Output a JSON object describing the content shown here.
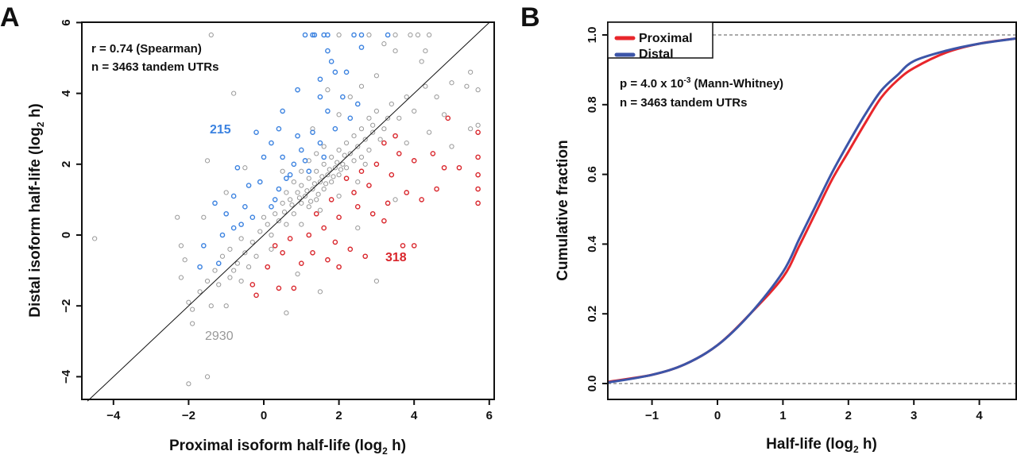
{
  "chart_data": [
    {
      "panel_label": "A",
      "type": "scatter",
      "xlabel": "Proximal isoform half-life (log2 h)",
      "xlabel_main": "Proximal isoform half-life (log",
      "xlabel_sub": "2",
      "xlabel_end": " h)",
      "ylabel_main": "Distal isoform half-life (log",
      "ylabel_sub": "2",
      "ylabel_end": " h)",
      "xlim": [
        -4.84,
        6.1
      ],
      "ylim": [
        -4.64,
        6
      ],
      "xticks": [
        "-4",
        "-2",
        "0",
        "2",
        "4",
        "6"
      ],
      "yticks": [
        "-4",
        "-2",
        "0",
        "2",
        "4",
        "6"
      ],
      "reference_line": "y = x",
      "annotations": [
        "r = 0.74 (Spearman)",
        "n = 3463 tandem UTRs"
      ],
      "group_labels": {
        "up": "215",
        "down": "318",
        "unchanged": "2930"
      },
      "colors": {
        "up": "#3b82e0",
        "down": "#d9252b",
        "unchanged": "#777777"
      },
      "series": [
        {
          "group": "up",
          "points": [
            [
              1.1,
              5.65
            ],
            [
              1.3,
              5.65
            ],
            [
              1.35,
              5.65
            ],
            [
              1.6,
              5.65
            ],
            [
              1.7,
              5.65
            ],
            [
              2.4,
              5.65
            ],
            [
              2.6,
              5.65
            ],
            [
              3.3,
              5.65
            ],
            [
              1.7,
              5.2
            ],
            [
              2.6,
              5.3
            ],
            [
              1.8,
              4.9
            ],
            [
              1.9,
              4.6
            ],
            [
              2.2,
              4.6
            ],
            [
              1.5,
              4.4
            ],
            [
              0.9,
              4.1
            ],
            [
              1.5,
              3.9
            ],
            [
              2.1,
              3.9
            ],
            [
              1.7,
              3.5
            ],
            [
              2.5,
              3.7
            ],
            [
              0.5,
              3.5
            ],
            [
              0.4,
              3.0
            ],
            [
              -0.2,
              2.9
            ],
            [
              0.9,
              2.8
            ],
            [
              1.3,
              2.9
            ],
            [
              0.2,
              2.6
            ],
            [
              0.0,
              2.2
            ],
            [
              0.5,
              2.2
            ],
            [
              -0.7,
              1.9
            ],
            [
              0.7,
              1.7
            ],
            [
              1.2,
              1.8
            ],
            [
              -0.4,
              1.4
            ],
            [
              -0.1,
              1.5
            ],
            [
              0.4,
              1.3
            ],
            [
              -0.8,
              1.1
            ],
            [
              -1.3,
              0.9
            ],
            [
              -0.5,
              0.8
            ],
            [
              -1.0,
              0.6
            ],
            [
              -0.3,
              0.5
            ],
            [
              0.2,
              0.8
            ],
            [
              -0.8,
              0.2
            ],
            [
              -1.1,
              0.0
            ],
            [
              -1.6,
              -0.3
            ],
            [
              -1.2,
              -0.8
            ],
            [
              -1.7,
              -0.9
            ],
            [
              1.0,
              2.4
            ],
            [
              0.8,
              2.0
            ],
            [
              1.5,
              2.6
            ],
            [
              2.3,
              3.3
            ],
            [
              1.9,
              3.0
            ],
            [
              1.6,
              2.2
            ],
            [
              0.6,
              1.6
            ],
            [
              1.1,
              2.1
            ],
            [
              0.3,
              1.0
            ],
            [
              -0.6,
              0.3
            ]
          ]
        },
        {
          "group": "down",
          "points": [
            [
              3.2,
              2.6
            ],
            [
              3.6,
              2.3
            ],
            [
              4.0,
              2.1
            ],
            [
              4.5,
              2.3
            ],
            [
              4.9,
              3.3
            ],
            [
              5.7,
              2.9
            ],
            [
              5.7,
              2.2
            ],
            [
              5.7,
              1.7
            ],
            [
              5.7,
              1.3
            ],
            [
              5.7,
              0.9
            ],
            [
              5.2,
              1.9
            ],
            [
              4.8,
              1.9
            ],
            [
              4.6,
              1.3
            ],
            [
              4.2,
              1.0
            ],
            [
              3.8,
              1.2
            ],
            [
              3.3,
              0.9
            ],
            [
              3.2,
              0.4
            ],
            [
              3.7,
              -0.3
            ],
            [
              4.0,
              -0.3
            ],
            [
              2.7,
              -0.6
            ],
            [
              2.3,
              -0.4
            ],
            [
              2.0,
              -0.9
            ],
            [
              1.7,
              -0.7
            ],
            [
              1.3,
              -0.5
            ],
            [
              1.0,
              -0.8
            ],
            [
              0.5,
              -0.5
            ],
            [
              0.1,
              -0.9
            ],
            [
              -0.3,
              -1.4
            ],
            [
              -0.2,
              -1.7
            ],
            [
              0.4,
              -1.5
            ],
            [
              0.8,
              -1.5
            ],
            [
              1.2,
              0.0
            ],
            [
              1.6,
              0.2
            ],
            [
              2.0,
              0.5
            ],
            [
              2.5,
              0.8
            ],
            [
              2.8,
              1.4
            ],
            [
              2.2,
              1.6
            ],
            [
              2.6,
              1.8
            ],
            [
              3.0,
              2.0
            ],
            [
              3.4,
              1.7
            ],
            [
              1.8,
              1.0
            ],
            [
              1.4,
              0.6
            ],
            [
              0.7,
              -0.1
            ],
            [
              0.3,
              -0.3
            ],
            [
              2.4,
              1.2
            ],
            [
              2.9,
              0.6
            ],
            [
              1.9,
              -0.2
            ],
            [
              3.5,
              2.8
            ]
          ]
        },
        {
          "group": "unchanged",
          "points": [
            [
              -4.5,
              -0.1
            ],
            [
              -2.3,
              0.5
            ],
            [
              -2.2,
              -0.3
            ],
            [
              -2.1,
              -0.7
            ],
            [
              -2.2,
              -1.2
            ],
            [
              -2.0,
              -1.9
            ],
            [
              -1.9,
              -2.5
            ],
            [
              -2.0,
              -4.2
            ],
            [
              -1.5,
              -4.0
            ],
            [
              -1.9,
              -2.1
            ],
            [
              -1.7,
              -1.6
            ],
            [
              -1.5,
              -1.3
            ],
            [
              -1.4,
              -2.0
            ],
            [
              -1.3,
              -1.0
            ],
            [
              -1.0,
              -2.0
            ],
            [
              -0.9,
              -1.2
            ],
            [
              -0.7,
              -0.8
            ],
            [
              -0.5,
              -0.5
            ],
            [
              -0.3,
              -0.2
            ],
            [
              -0.1,
              0.1
            ],
            [
              0.1,
              0.3
            ],
            [
              0.3,
              0.6
            ],
            [
              0.5,
              0.9
            ],
            [
              0.7,
              1.0
            ],
            [
              0.9,
              1.2
            ],
            [
              1.0,
              1.4
            ],
            [
              1.1,
              1.1
            ],
            [
              1.2,
              1.6
            ],
            [
              1.3,
              1.3
            ],
            [
              1.4,
              1.8
            ],
            [
              1.5,
              1.5
            ],
            [
              1.6,
              2.0
            ],
            [
              1.7,
              1.7
            ],
            [
              1.8,
              2.2
            ],
            [
              1.9,
              1.9
            ],
            [
              2.0,
              2.4
            ],
            [
              2.1,
              2.0
            ],
            [
              2.2,
              2.6
            ],
            [
              2.3,
              2.3
            ],
            [
              2.4,
              2.8
            ],
            [
              2.5,
              2.5
            ],
            [
              2.6,
              3.0
            ],
            [
              2.7,
              2.7
            ],
            [
              2.8,
              3.3
            ],
            [
              2.9,
              2.9
            ],
            [
              3.0,
              3.5
            ],
            [
              3.2,
              3.0
            ],
            [
              3.4,
              3.7
            ],
            [
              3.6,
              3.3
            ],
            [
              3.8,
              3.9
            ],
            [
              4.0,
              3.5
            ],
            [
              4.3,
              4.2
            ],
            [
              4.6,
              3.9
            ],
            [
              5.0,
              4.3
            ],
            [
              5.4,
              4.2
            ],
            [
              5.5,
              4.6
            ],
            [
              5.7,
              4.1
            ],
            [
              5.7,
              3.1
            ],
            [
              5.5,
              3.0
            ],
            [
              3.0,
              4.5
            ],
            [
              2.6,
              4.2
            ],
            [
              3.5,
              5.2
            ],
            [
              3.2,
              5.4
            ],
            [
              4.3,
              5.2
            ],
            [
              4.2,
              4.9
            ],
            [
              -0.8,
              4.0
            ],
            [
              -1.5,
              2.1
            ],
            [
              -0.5,
              1.9
            ],
            [
              -1.0,
              1.2
            ],
            [
              -1.6,
              0.5
            ],
            [
              0.5,
              1.8
            ],
            [
              0.0,
              0.5
            ],
            [
              -0.2,
              -0.6
            ],
            [
              0.2,
              -0.4
            ],
            [
              0.6,
              0.3
            ],
            [
              0.8,
              0.6
            ],
            [
              1.0,
              0.9
            ],
            [
              1.2,
              0.8
            ],
            [
              1.4,
              1.0
            ],
            [
              1.6,
              1.3
            ],
            [
              1.8,
              1.5
            ],
            [
              2.0,
              1.7
            ],
            [
              2.2,
              1.9
            ],
            [
              2.4,
              2.1
            ],
            [
              2.6,
              2.2
            ],
            [
              2.8,
              2.4
            ],
            [
              1.0,
              1.8
            ],
            [
              1.2,
              2.1
            ],
            [
              1.4,
              2.3
            ],
            [
              1.6,
              2.5
            ],
            [
              0.8,
              1.5
            ],
            [
              0.6,
              1.2
            ],
            [
              0.4,
              0.4
            ],
            [
              0.2,
              0.0
            ],
            [
              -0.4,
              -0.9
            ],
            [
              -0.6,
              -1.3
            ],
            [
              -0.8,
              -1.0
            ],
            [
              0.9,
              -1.1
            ],
            [
              1.5,
              -1.6
            ],
            [
              3.0,
              -1.3
            ],
            [
              0.6,
              -2.2
            ],
            [
              2.5,
              0.2
            ],
            [
              3.5,
              1.0
            ],
            [
              4.4,
              2.9
            ],
            [
              1.3,
              3.0
            ],
            [
              1.7,
              4.1
            ],
            [
              2.0,
              3.4
            ],
            [
              2.3,
              3.9
            ],
            [
              3.8,
              2.6
            ],
            [
              4.8,
              3.4
            ],
            [
              5.0,
              2.5
            ],
            [
              1.0,
              0.3
            ],
            [
              1.5,
              0.7
            ],
            [
              2.0,
              1.1
            ],
            [
              2.5,
              1.5
            ],
            [
              -1.4,
              5.65
            ],
            [
              2.0,
              5.65
            ],
            [
              2.8,
              5.65
            ],
            [
              3.5,
              5.65
            ],
            [
              3.9,
              5.65
            ],
            [
              4.1,
              5.65
            ],
            [
              4.4,
              5.65
            ],
            [
              1.15,
              1.25
            ],
            [
              1.35,
              1.45
            ],
            [
              1.55,
              1.65
            ],
            [
              1.75,
              1.85
            ],
            [
              1.95,
              2.05
            ],
            [
              2.15,
              2.25
            ],
            [
              1.25,
              0.95
            ],
            [
              1.45,
              1.15
            ],
            [
              1.65,
              1.45
            ],
            [
              1.85,
              1.65
            ],
            [
              2.05,
              1.85
            ],
            [
              0.95,
              1.05
            ],
            [
              0.75,
              0.85
            ],
            [
              0.55,
              0.65
            ],
            [
              -1.1,
              -0.6
            ],
            [
              -1.2,
              -1.4
            ],
            [
              -0.6,
              -0.1
            ],
            [
              -0.9,
              -0.4
            ],
            [
              3.3,
              3.3
            ],
            [
              3.1,
              2.7
            ],
            [
              2.7,
              2.0
            ],
            [
              2.9,
              3.1
            ]
          ]
        }
      ]
    },
    {
      "panel_label": "B",
      "type": "line",
      "xlabel_main": "Half-life (log",
      "xlabel_sub": "2",
      "xlabel_end": " h)",
      "ylabel": "Cumulative fraction",
      "xlim": [
        -1.67,
        4.57
      ],
      "ylim": [
        -0.05,
        1.05
      ],
      "xticks": [
        "-1",
        "0",
        "1",
        "2",
        "3",
        "4"
      ],
      "yticks": [
        "0.0",
        "0.2",
        "0.4",
        "0.6",
        "0.8",
        "1.0"
      ],
      "reference_lines": [
        0,
        1
      ],
      "annotations": {
        "p_main": "p = 4.0 x 10",
        "p_exp": "-3",
        "p_end": " (Mann-Whitney)",
        "n": "n = 3463 tandem UTRs"
      },
      "legend_position": "top-left",
      "series": [
        {
          "name": "Proximal",
          "color": "#e8262b",
          "x": [
            -1.67,
            -1.0,
            -0.5,
            0.0,
            0.5,
            1.0,
            1.25,
            1.5,
            1.75,
            2.0,
            2.25,
            2.5,
            2.75,
            3.0,
            3.5,
            4.0,
            4.57
          ],
          "y": [
            0.005,
            0.025,
            0.055,
            0.11,
            0.2,
            0.305,
            0.395,
            0.49,
            0.585,
            0.665,
            0.745,
            0.82,
            0.87,
            0.905,
            0.95,
            0.975,
            0.99
          ]
        },
        {
          "name": "Distal",
          "color": "#3c55a8",
          "x": [
            -1.67,
            -1.0,
            -0.5,
            0.0,
            0.5,
            1.0,
            1.25,
            1.5,
            1.75,
            2.0,
            2.25,
            2.5,
            2.75,
            3.0,
            3.5,
            4.0,
            4.57
          ],
          "y": [
            0.003,
            0.025,
            0.055,
            0.11,
            0.2,
            0.32,
            0.415,
            0.51,
            0.605,
            0.69,
            0.77,
            0.84,
            0.885,
            0.925,
            0.955,
            0.975,
            0.99
          ]
        }
      ]
    }
  ]
}
